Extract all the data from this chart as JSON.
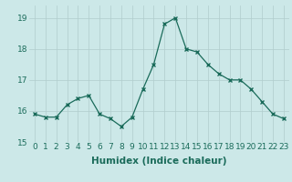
{
  "x": [
    0,
    1,
    2,
    3,
    4,
    5,
    6,
    7,
    8,
    9,
    10,
    11,
    12,
    13,
    14,
    15,
    16,
    17,
    18,
    19,
    20,
    21,
    22,
    23
  ],
  "y": [
    15.9,
    15.8,
    15.8,
    16.2,
    16.4,
    16.5,
    15.9,
    15.75,
    15.5,
    15.8,
    16.7,
    17.5,
    18.8,
    19.0,
    18.0,
    17.9,
    17.5,
    17.2,
    17.0,
    17.0,
    16.7,
    16.3,
    15.9,
    15.75
  ],
  "line_color": "#1a6b5a",
  "marker": "x",
  "marker_size": 2.5,
  "bg_color": "#cce8e8",
  "grid_color": "#b0cccc",
  "xlabel": "Humidex (Indice chaleur)",
  "ylim": [
    15,
    19.4
  ],
  "xlim": [
    -0.5,
    23.5
  ],
  "yticks": [
    15,
    16,
    17,
    18,
    19
  ],
  "xticks": [
    0,
    1,
    2,
    3,
    4,
    5,
    6,
    7,
    8,
    9,
    10,
    11,
    12,
    13,
    14,
    15,
    16,
    17,
    18,
    19,
    20,
    21,
    22,
    23
  ],
  "tick_label_fontsize": 6.5,
  "xlabel_fontsize": 7.5
}
